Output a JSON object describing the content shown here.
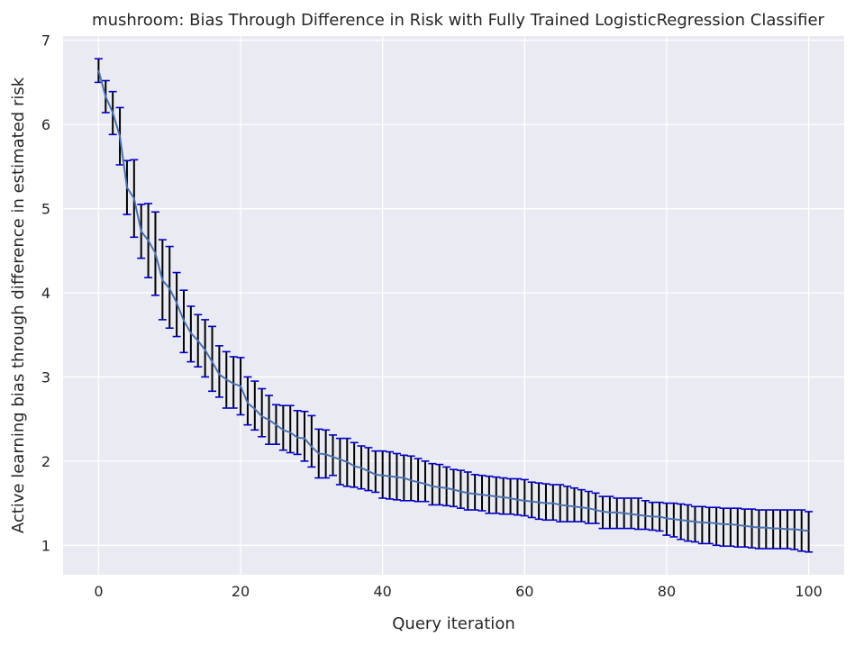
{
  "chart_data": {
    "type": "line",
    "title": "mushroom: Bias Through Difference in Risk with Fully Trained LogisticRegression Classifier",
    "xlabel": "Query iteration",
    "ylabel": "Active learning bias through difference in estimated risk",
    "xlim": [
      -5,
      105
    ],
    "ylim": [
      0.65,
      7.05
    ],
    "x_ticks": [
      0,
      20,
      40,
      60,
      80,
      100
    ],
    "y_ticks": [
      1,
      2,
      3,
      4,
      5,
      6,
      7
    ],
    "grid": true,
    "legend": "none",
    "colors": {
      "background": "#eaeaf2",
      "grid": "#ffffff",
      "line": "#4c72b0",
      "error_bar": "#000000",
      "cap": "#0000cc"
    },
    "series": [
      {
        "x": [
          0,
          1,
          2,
          3,
          4,
          5,
          6,
          7,
          8,
          9,
          10,
          11,
          12,
          13,
          14,
          15,
          16,
          17,
          18,
          19,
          20,
          21,
          22,
          23,
          24,
          25,
          26,
          27,
          28,
          29,
          30,
          31,
          32,
          33,
          34,
          35,
          36,
          37,
          38,
          39,
          40,
          41,
          42,
          43,
          44,
          45,
          46,
          47,
          48,
          49,
          50,
          51,
          52,
          53,
          54,
          55,
          56,
          57,
          58,
          59,
          60,
          61,
          62,
          63,
          64,
          65,
          66,
          67,
          68,
          69,
          70,
          71,
          72,
          73,
          74,
          75,
          76,
          77,
          78,
          79,
          80,
          81,
          82,
          83,
          84,
          85,
          86,
          87,
          88,
          89,
          90,
          91,
          92,
          93,
          94,
          95,
          96,
          97,
          98,
          99,
          100
        ],
        "mean": [
          6.64,
          6.33,
          6.14,
          5.86,
          5.25,
          5.12,
          4.73,
          4.62,
          4.47,
          4.15,
          4.05,
          3.88,
          3.67,
          3.52,
          3.43,
          3.32,
          3.18,
          3.03,
          2.97,
          2.92,
          2.89,
          2.69,
          2.62,
          2.53,
          2.49,
          2.43,
          2.37,
          2.34,
          2.28,
          2.27,
          2.17,
          2.09,
          2.08,
          2.05,
          2.02,
          1.99,
          1.94,
          1.92,
          1.88,
          1.84,
          1.83,
          1.82,
          1.81,
          1.8,
          1.77,
          1.75,
          1.73,
          1.7,
          1.69,
          1.68,
          1.66,
          1.64,
          1.62,
          1.61,
          1.6,
          1.59,
          1.58,
          1.57,
          1.56,
          1.54,
          1.53,
          1.52,
          1.51,
          1.5,
          1.5,
          1.48,
          1.47,
          1.46,
          1.45,
          1.44,
          1.42,
          1.4,
          1.39,
          1.39,
          1.38,
          1.37,
          1.36,
          1.35,
          1.34,
          1.34,
          1.32,
          1.31,
          1.3,
          1.29,
          1.28,
          1.27,
          1.27,
          1.26,
          1.25,
          1.25,
          1.24,
          1.23,
          1.22,
          1.21,
          1.21,
          1.2,
          1.2,
          1.19,
          1.19,
          1.18,
          1.17
        ],
        "lower": [
          6.5,
          6.14,
          5.88,
          5.52,
          4.93,
          4.66,
          4.41,
          4.18,
          3.97,
          3.68,
          3.58,
          3.48,
          3.29,
          3.18,
          3.12,
          3.0,
          2.83,
          2.76,
          2.63,
          2.63,
          2.55,
          2.43,
          2.37,
          2.29,
          2.2,
          2.2,
          2.13,
          2.1,
          2.08,
          2.0,
          1.93,
          1.8,
          1.8,
          1.83,
          1.72,
          1.7,
          1.69,
          1.67,
          1.65,
          1.63,
          1.56,
          1.55,
          1.54,
          1.53,
          1.53,
          1.52,
          1.52,
          1.48,
          1.48,
          1.47,
          1.46,
          1.44,
          1.42,
          1.42,
          1.41,
          1.38,
          1.38,
          1.37,
          1.37,
          1.36,
          1.35,
          1.33,
          1.31,
          1.3,
          1.3,
          1.28,
          1.28,
          1.28,
          1.28,
          1.26,
          1.26,
          1.2,
          1.2,
          1.2,
          1.2,
          1.2,
          1.19,
          1.19,
          1.18,
          1.17,
          1.12,
          1.1,
          1.07,
          1.05,
          1.04,
          1.02,
          1.02,
          1.0,
          0.99,
          0.99,
          0.98,
          0.98,
          0.97,
          0.96,
          0.96,
          0.96,
          0.96,
          0.96,
          0.95,
          0.93,
          0.92
        ],
        "upper": [
          6.78,
          6.52,
          6.39,
          6.2,
          5.57,
          5.58,
          5.05,
          5.06,
          4.96,
          4.63,
          4.55,
          4.24,
          4.03,
          3.84,
          3.74,
          3.68,
          3.6,
          3.37,
          3.3,
          3.24,
          3.23,
          3.0,
          2.95,
          2.86,
          2.78,
          2.67,
          2.66,
          2.66,
          2.6,
          2.59,
          2.54,
          2.38,
          2.37,
          2.31,
          2.27,
          2.27,
          2.22,
          2.18,
          2.16,
          2.12,
          2.12,
          2.11,
          2.09,
          2.07,
          2.06,
          2.03,
          2.0,
          1.97,
          1.96,
          1.93,
          1.9,
          1.89,
          1.87,
          1.84,
          1.83,
          1.82,
          1.81,
          1.8,
          1.79,
          1.79,
          1.78,
          1.75,
          1.74,
          1.73,
          1.72,
          1.72,
          1.7,
          1.68,
          1.66,
          1.64,
          1.62,
          1.58,
          1.58,
          1.56,
          1.56,
          1.56,
          1.56,
          1.53,
          1.51,
          1.51,
          1.5,
          1.5,
          1.49,
          1.48,
          1.46,
          1.46,
          1.45,
          1.45,
          1.44,
          1.44,
          1.44,
          1.43,
          1.43,
          1.42,
          1.42,
          1.42,
          1.42,
          1.42,
          1.42,
          1.42,
          1.4
        ]
      }
    ]
  }
}
